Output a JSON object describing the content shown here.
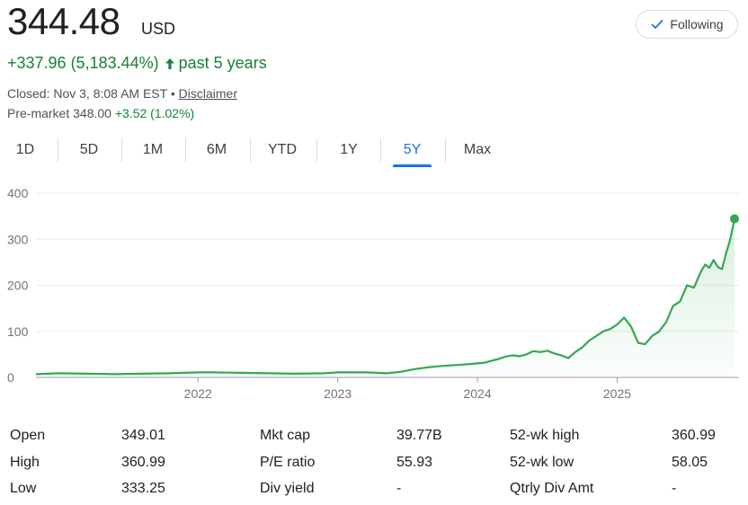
{
  "quote": {
    "price": "344.48",
    "currency": "USD",
    "change_text": "+337.96 (5,183.44%)",
    "change_period": "past 5 years",
    "closed_text": "Closed: Nov 3, 8:08 AM EST",
    "bullet": " • ",
    "disclaimer": "Disclaimer",
    "premarket_label": "Pre-market 348.00",
    "premarket_change": "+3.52 (1.02%)"
  },
  "follow": {
    "label": "Following",
    "icon": "check-icon"
  },
  "tabs": [
    {
      "label": "1D",
      "active": false
    },
    {
      "label": "5D",
      "active": false
    },
    {
      "label": "1M",
      "active": false
    },
    {
      "label": "6M",
      "active": false
    },
    {
      "label": "YTD",
      "active": false
    },
    {
      "label": "1Y",
      "active": false
    },
    {
      "label": "5Y",
      "active": true
    },
    {
      "label": "Max",
      "active": false
    }
  ],
  "colors": {
    "positive": "#188038",
    "line": "#34a853",
    "active_tab": "#1a73e8"
  },
  "chart_data": {
    "type": "area",
    "ylim": [
      0,
      400
    ],
    "yticks": [
      "400",
      "300",
      "200",
      "100",
      "0"
    ],
    "yticks_values": [
      400,
      300,
      200,
      100,
      0
    ],
    "xticks": [
      "2022",
      "2023",
      "2024",
      "2025"
    ],
    "xticks_values": [
      2022,
      2023,
      2024,
      2025
    ],
    "xlim": [
      2020.84,
      2025.84
    ],
    "grid": true,
    "series": [
      {
        "x": [
          2020.84,
          2021.0,
          2021.2,
          2021.4,
          2021.6,
          2021.8,
          2022.0,
          2022.1,
          2022.3,
          2022.5,
          2022.7,
          2022.9,
          2023.0,
          2023.2,
          2023.35,
          2023.45,
          2023.55,
          2023.65,
          2023.75,
          2023.85,
          2023.95,
          2024.05,
          2024.15,
          2024.2,
          2024.25,
          2024.3,
          2024.35,
          2024.4,
          2024.45,
          2024.5,
          2024.55,
          2024.6,
          2024.65,
          2024.7,
          2024.75,
          2024.8,
          2024.85,
          2024.9,
          2024.95,
          2025.0,
          2025.05,
          2025.1,
          2025.15,
          2025.2,
          2025.25,
          2025.3,
          2025.35,
          2025.4,
          2025.45,
          2025.5,
          2025.55,
          2025.6,
          2025.63,
          2025.66,
          2025.69,
          2025.72,
          2025.75,
          2025.78,
          2025.81,
          2025.84
        ],
        "y": [
          7,
          9,
          8,
          7,
          8,
          9,
          11,
          11,
          10,
          9,
          8,
          9,
          11,
          11,
          9,
          12,
          18,
          22,
          25,
          27,
          29,
          32,
          40,
          45,
          48,
          46,
          50,
          57,
          55,
          58,
          52,
          48,
          42,
          55,
          65,
          80,
          90,
          100,
          105,
          115,
          130,
          110,
          75,
          72,
          90,
          100,
          120,
          155,
          165,
          200,
          195,
          230,
          245,
          238,
          255,
          240,
          235,
          270,
          300,
          344.48
        ]
      }
    ]
  },
  "stats": [
    {
      "label": "Open",
      "value": "349.01"
    },
    {
      "label": "High",
      "value": "360.99"
    },
    {
      "label": "Low",
      "value": "333.25"
    },
    {
      "label": "Mkt cap",
      "value": "39.77B"
    },
    {
      "label": "P/E ratio",
      "value": "55.93"
    },
    {
      "label": "Div yield",
      "value": "-"
    },
    {
      "label": "52-wk high",
      "value": "360.99"
    },
    {
      "label": "52-wk low",
      "value": "58.05"
    },
    {
      "label": "Qtrly Div Amt",
      "value": "-"
    }
  ]
}
